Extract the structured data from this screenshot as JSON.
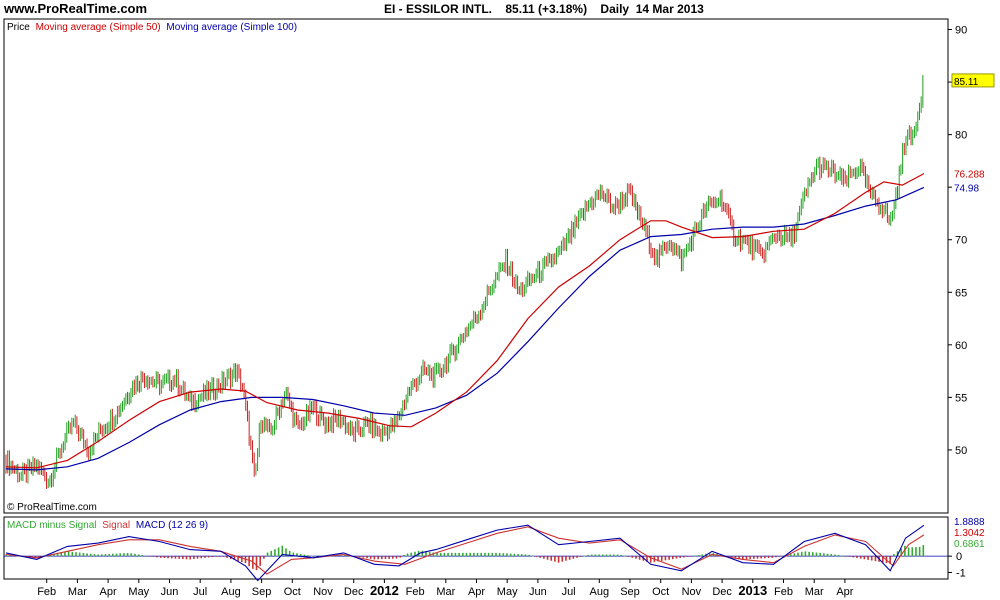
{
  "header": {
    "site": "www.ProRealTime.com",
    "title": "EI - ESSILOR INTL.    85.11 (+3.18%)    Daily  14 Mar 2013"
  },
  "chart_data": [
    {
      "type": "candlestick",
      "legend": [
        {
          "label": "Price",
          "color": "#000000"
        },
        {
          "label": "Moving average (Simple 50)",
          "color": "#cc0000"
        },
        {
          "label": "Moving average (Simple 100)",
          "color": "#0000aa"
        }
      ],
      "ylim": [
        44,
        91
      ],
      "yticks": [
        50,
        55,
        60,
        65,
        70,
        75,
        80,
        85,
        90
      ],
      "last_labels": [
        {
          "value": 85.11,
          "text": "85.11",
          "bg": "#ffff00"
        },
        {
          "value": 76.288,
          "text": "76.288",
          "color": "#cc0000"
        },
        {
          "value": 74.98,
          "text": "74.98",
          "color": "#0000aa"
        }
      ],
      "copyright": "© ProRealTime.com",
      "price_path": [
        [
          0,
          49
        ],
        [
          0.5,
          47.5
        ],
        [
          1,
          48.5
        ],
        [
          1.4,
          47
        ],
        [
          1.9,
          51
        ],
        [
          2.2,
          52.5
        ],
        [
          2.7,
          50
        ],
        [
          3.1,
          52
        ],
        [
          3.6,
          53.5
        ],
        [
          4.1,
          56
        ],
        [
          4.5,
          57
        ],
        [
          5,
          56.2
        ],
        [
          5.5,
          56.8
        ],
        [
          6,
          54.5
        ],
        [
          6.6,
          55.5
        ],
        [
          7.1,
          56.5
        ],
        [
          7.5,
          57.5
        ],
        [
          7.7,
          56
        ],
        [
          7.9,
          52
        ],
        [
          8.1,
          47
        ],
        [
          8.3,
          53
        ],
        [
          8.6,
          51.5
        ],
        [
          9.1,
          55.5
        ],
        [
          9.5,
          52
        ],
        [
          10,
          54
        ],
        [
          10.4,
          52.5
        ],
        [
          10.9,
          53
        ],
        [
          11.3,
          51.5
        ],
        [
          11.8,
          52.5
        ],
        [
          12.2,
          51.5
        ],
        [
          12.7,
          52.5
        ],
        [
          13.1,
          55.5
        ],
        [
          13.6,
          57.5
        ],
        [
          14,
          57
        ],
        [
          14.5,
          59
        ],
        [
          14.9,
          61
        ],
        [
          15.4,
          63
        ],
        [
          15.8,
          65.5
        ],
        [
          16.3,
          68
        ],
        [
          16.7,
          65
        ],
        [
          17.2,
          66.5
        ],
        [
          17.6,
          67.5
        ],
        [
          18.1,
          69
        ],
        [
          18.5,
          71
        ],
        [
          19,
          73.5
        ],
        [
          19.4,
          74.5
        ],
        [
          19.8,
          73
        ],
        [
          20.3,
          74.5
        ],
        [
          20.8,
          71
        ],
        [
          21.2,
          68
        ],
        [
          21.6,
          70
        ],
        [
          22,
          68
        ],
        [
          22.4,
          70.5
        ],
        [
          22.8,
          73
        ],
        [
          23.3,
          74
        ],
        [
          23.7,
          70.5
        ],
        [
          24.2,
          69.5
        ],
        [
          24.6,
          68.5
        ],
        [
          25.1,
          70.5
        ],
        [
          25.6,
          70
        ],
        [
          26,
          74
        ],
        [
          26.4,
          77
        ],
        [
          26.9,
          76.5
        ],
        [
          27.3,
          75.5
        ],
        [
          27.8,
          77
        ],
        [
          28.2,
          74
        ],
        [
          28.6,
          73
        ],
        [
          28.8,
          71.5
        ],
        [
          29.1,
          76
        ],
        [
          29.3,
          80
        ],
        [
          29.5,
          79.5
        ],
        [
          29.7,
          82
        ],
        [
          29.9,
          85.11
        ]
      ],
      "ma50": [
        [
          0,
          48.4
        ],
        [
          1,
          48.3
        ],
        [
          2,
          49
        ],
        [
          3,
          50.8
        ],
        [
          4,
          52.8
        ],
        [
          5,
          54.6
        ],
        [
          6,
          55.5
        ],
        [
          7,
          55.8
        ],
        [
          7.8,
          55.6
        ],
        [
          8.5,
          54.5
        ],
        [
          9.5,
          53.8
        ],
        [
          10.5,
          53.5
        ],
        [
          11.5,
          53
        ],
        [
          12.5,
          52.3
        ],
        [
          13.2,
          52.2
        ],
        [
          14,
          53.5
        ],
        [
          15,
          55.5
        ],
        [
          16,
          58.5
        ],
        [
          17,
          62.5
        ],
        [
          18,
          65.5
        ],
        [
          19,
          67.5
        ],
        [
          20,
          70
        ],
        [
          21,
          71.8
        ],
        [
          21.5,
          71.8
        ],
        [
          22,
          71.2
        ],
        [
          23,
          70.2
        ],
        [
          24,
          70.3
        ],
        [
          25,
          70.8
        ],
        [
          26,
          71
        ],
        [
          27,
          72.5
        ],
        [
          28,
          74.5
        ],
        [
          28.6,
          75.5
        ],
        [
          29.2,
          75.2
        ],
        [
          29.9,
          76.288
        ]
      ],
      "ma100": [
        [
          0,
          48.2
        ],
        [
          1,
          48.1
        ],
        [
          2,
          48.4
        ],
        [
          3,
          49.2
        ],
        [
          4,
          50.7
        ],
        [
          5,
          52.4
        ],
        [
          6,
          53.8
        ],
        [
          7,
          54.6
        ],
        [
          8,
          55
        ],
        [
          9,
          55
        ],
        [
          10,
          54.8
        ],
        [
          11,
          54.2
        ],
        [
          12,
          53.5
        ],
        [
          13,
          53.3
        ],
        [
          14,
          54
        ],
        [
          15,
          55.2
        ],
        [
          16,
          57.3
        ],
        [
          17,
          60.3
        ],
        [
          18,
          63.5
        ],
        [
          19,
          66.5
        ],
        [
          20,
          69
        ],
        [
          21,
          70.3
        ],
        [
          22,
          70.5
        ],
        [
          23,
          71
        ],
        [
          24,
          71.2
        ],
        [
          25,
          71.2
        ],
        [
          26,
          71.5
        ],
        [
          27,
          72.3
        ],
        [
          28,
          73.2
        ],
        [
          29,
          73.8
        ],
        [
          29.9,
          74.98
        ]
      ]
    },
    {
      "type": "macd",
      "legend": [
        {
          "label": "MACD minus Signal",
          "color": "#33aa33"
        },
        {
          "label": "Signal",
          "color": "#cc3333"
        },
        {
          "label": "MACD (12 26 9)",
          "color": "#0000aa"
        }
      ],
      "ylim": [
        -1.4,
        2.4
      ],
      "yticks": [
        -1,
        0
      ],
      "last_labels": [
        {
          "value": 1.8888,
          "text": "1.8888",
          "color": "#0000aa"
        },
        {
          "value": 1.3042,
          "text": "1.3042",
          "color": "#cc0000"
        },
        {
          "value": 0.6861,
          "text": "0.6861",
          "color": "#33aa33"
        }
      ],
      "macd": [
        [
          0,
          0.2
        ],
        [
          1,
          -0.2
        ],
        [
          2,
          0.6
        ],
        [
          3,
          0.8
        ],
        [
          4,
          1.2
        ],
        [
          5,
          0.9
        ],
        [
          6,
          0.4
        ],
        [
          7,
          0.3
        ],
        [
          7.8,
          -0.6
        ],
        [
          8.2,
          -1.5
        ],
        [
          9,
          0.1
        ],
        [
          10,
          -0.1
        ],
        [
          11,
          0.2
        ],
        [
          12,
          -0.5
        ],
        [
          12.8,
          -0.6
        ],
        [
          13.5,
          0.2
        ],
        [
          14,
          0.4
        ],
        [
          15,
          1
        ],
        [
          16,
          1.6
        ],
        [
          17,
          1.9
        ],
        [
          18,
          0.7
        ],
        [
          19,
          0.9
        ],
        [
          20,
          1.1
        ],
        [
          21,
          -0.5
        ],
        [
          22,
          -0.9
        ],
        [
          23,
          0.3
        ],
        [
          24,
          -0.4
        ],
        [
          25,
          -0.5
        ],
        [
          26,
          0.9
        ],
        [
          27,
          1.4
        ],
        [
          28,
          0.7
        ],
        [
          28.8,
          -0.9
        ],
        [
          29.3,
          1.1
        ],
        [
          29.9,
          1.8888
        ]
      ],
      "signal": [
        [
          0,
          0.1
        ],
        [
          1,
          -0.1
        ],
        [
          2,
          0.3
        ],
        [
          3,
          0.7
        ],
        [
          4,
          1
        ],
        [
          5,
          1
        ],
        [
          6,
          0.6
        ],
        [
          7,
          0.3
        ],
        [
          8,
          -0.3
        ],
        [
          8.5,
          -1.1
        ],
        [
          9.3,
          -0.2
        ],
        [
          10,
          -0.1
        ],
        [
          11,
          0.1
        ],
        [
          12,
          -0.3
        ],
        [
          13,
          -0.5
        ],
        [
          14,
          0.2
        ],
        [
          15,
          0.8
        ],
        [
          16,
          1.4
        ],
        [
          17,
          1.8
        ],
        [
          18,
          1.1
        ],
        [
          19,
          0.8
        ],
        [
          20,
          1
        ],
        [
          21,
          -0.1
        ],
        [
          22,
          -0.8
        ],
        [
          23,
          0.1
        ],
        [
          24,
          -0.2
        ],
        [
          25,
          -0.4
        ],
        [
          26,
          0.6
        ],
        [
          27,
          1.3
        ],
        [
          28,
          0.9
        ],
        [
          28.9,
          -0.6
        ],
        [
          29.4,
          0.7
        ],
        [
          29.9,
          1.3042
        ]
      ],
      "histogram_last": 0.6861
    }
  ],
  "xaxis": {
    "labels": [
      {
        "text": "Feb",
        "t": 1,
        "bold": false
      },
      {
        "text": "Mar",
        "t": 2,
        "bold": false
      },
      {
        "text": "Apr",
        "t": 3,
        "bold": false
      },
      {
        "text": "May",
        "t": 4,
        "bold": false
      },
      {
        "text": "Jun",
        "t": 5,
        "bold": false
      },
      {
        "text": "Jul",
        "t": 6,
        "bold": false
      },
      {
        "text": "Aug",
        "t": 7,
        "bold": false
      },
      {
        "text": "Sep",
        "t": 8,
        "bold": false
      },
      {
        "text": "Oct",
        "t": 9,
        "bold": false
      },
      {
        "text": "Nov",
        "t": 10,
        "bold": false
      },
      {
        "text": "Dec",
        "t": 11,
        "bold": false
      },
      {
        "text": "2012",
        "t": 12,
        "bold": true
      },
      {
        "text": "Feb",
        "t": 13,
        "bold": false
      },
      {
        "text": "Mar",
        "t": 14,
        "bold": false
      },
      {
        "text": "Apr",
        "t": 15,
        "bold": false
      },
      {
        "text": "May",
        "t": 16,
        "bold": false
      },
      {
        "text": "Jun",
        "t": 17,
        "bold": false
      },
      {
        "text": "Jul",
        "t": 18,
        "bold": false
      },
      {
        "text": "Aug",
        "t": 19,
        "bold": false
      },
      {
        "text": "Sep",
        "t": 20,
        "bold": false
      },
      {
        "text": "Oct",
        "t": 21,
        "bold": false
      },
      {
        "text": "Nov",
        "t": 22,
        "bold": false
      },
      {
        "text": "Dec",
        "t": 23,
        "bold": false
      },
      {
        "text": "2013",
        "t": 24,
        "bold": true
      },
      {
        "text": "Feb",
        "t": 25,
        "bold": false
      },
      {
        "text": "Mar",
        "t": 26,
        "bold": false
      },
      {
        "text": "Apr",
        "t": 27,
        "bold": false
      }
    ]
  }
}
